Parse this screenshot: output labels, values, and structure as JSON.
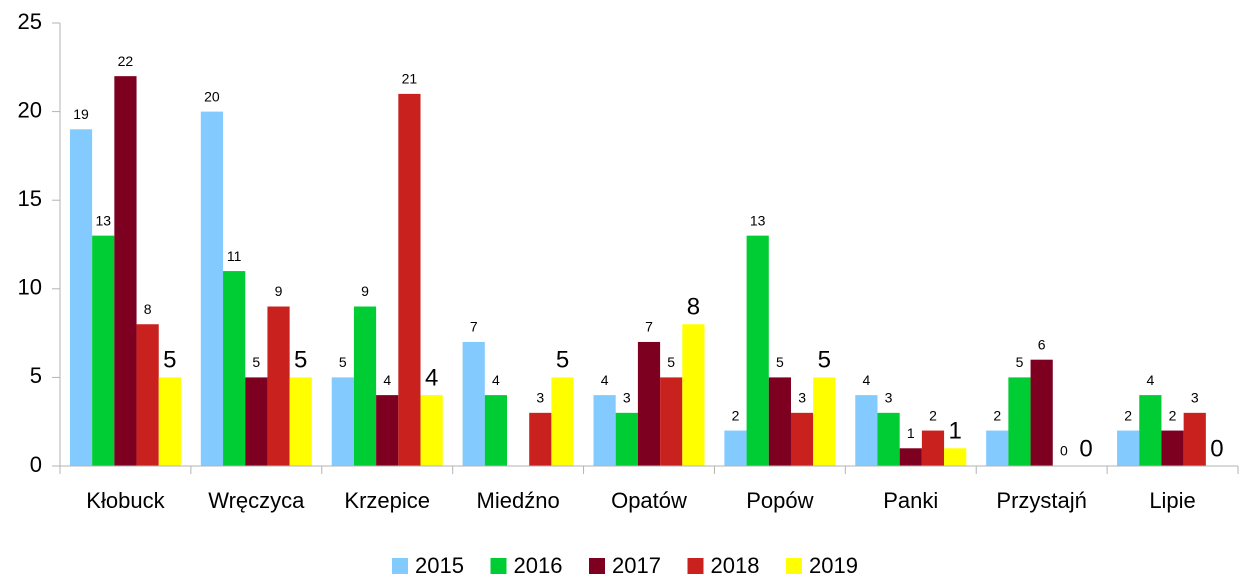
{
  "chart_data": {
    "type": "bar",
    "categories": [
      "Kłobuck",
      "Wręczyca",
      "Krzepice",
      "Miedźno",
      "Opatów",
      "Popów",
      "Panki",
      "Przystajń",
      "Lipie"
    ],
    "series": [
      {
        "name": "2015",
        "color": "#83caff",
        "values": [
          19,
          20,
          5,
          7,
          4,
          2,
          4,
          2,
          2
        ]
      },
      {
        "name": "2016",
        "color": "#00cc33",
        "values": [
          13,
          11,
          9,
          4,
          3,
          13,
          3,
          5,
          4
        ]
      },
      {
        "name": "2017",
        "color": "#7e0021",
        "values": [
          22,
          5,
          4,
          null,
          7,
          5,
          1,
          6,
          2
        ]
      },
      {
        "name": "2018",
        "color": "#c9211e",
        "values": [
          8,
          9,
          21,
          3,
          5,
          3,
          2,
          0,
          3
        ]
      },
      {
        "name": "2019",
        "color": "#ffff00",
        "values": [
          5,
          5,
          4,
          5,
          8,
          5,
          1,
          0,
          0
        ]
      }
    ],
    "ylim": [
      0,
      25
    ],
    "yticks": [
      0,
      5,
      10,
      15,
      20,
      25
    ],
    "grid": false,
    "legend": "bottom"
  }
}
